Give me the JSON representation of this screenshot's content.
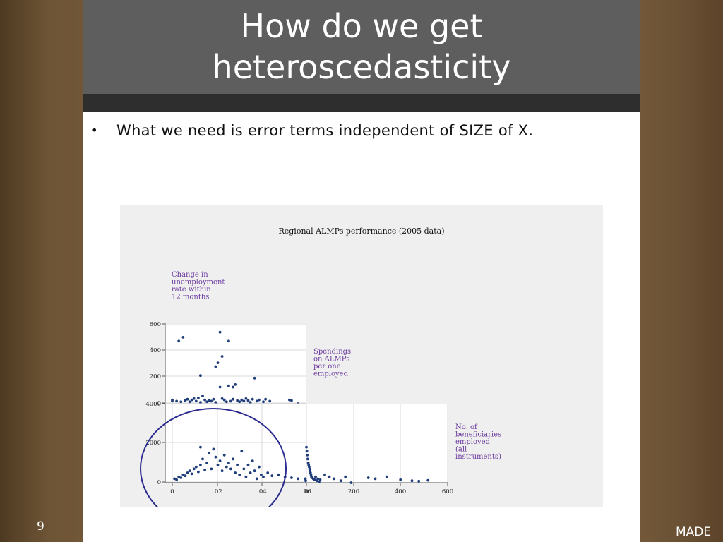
{
  "slide": {
    "title": "How do we get\nheteroscedasticity",
    "bullet": "What we need is error terms independent of SIZE of X.",
    "bullet_marker": "•",
    "page_number": "9",
    "footer_brand": "MADE"
  },
  "chart_data": {
    "type": "scatter",
    "title": "Regional ALMPs performance (2005 data)",
    "variables": [
      "Change in\nunemployment\nrate within\n12 months",
      "Spendings\non ALMPs\nper one\nemployed",
      "No. of\nbeneficiaries\nemployed\n(all\ninstruments)"
    ],
    "panels": [
      {
        "name": "top",
        "x_ticks": [],
        "y_ticks": [
          "600",
          "400",
          "200",
          "0"
        ],
        "xlim": [
          -0.003,
          0.06
        ],
        "ylim": [
          -20,
          610
        ],
        "points": [
          [
            0.0,
            0.0
          ],
          [
            0.003,
            470
          ],
          [
            0.005,
            500
          ],
          [
            0.0,
            10
          ],
          [
            0.002,
            0
          ],
          [
            0.004,
            -5
          ],
          [
            0.006,
            5
          ],
          [
            0.007,
            15
          ],
          [
            0.008,
            -5
          ],
          [
            0.009,
            10
          ],
          [
            0.01,
            20
          ],
          [
            0.011,
            0
          ],
          [
            0.012,
            25
          ],
          [
            0.013,
            -10
          ],
          [
            0.014,
            40
          ],
          [
            0.013,
            200
          ],
          [
            0.015,
            10
          ],
          [
            0.016,
            -5
          ],
          [
            0.017,
            5
          ],
          [
            0.018,
            0
          ],
          [
            0.019,
            15
          ],
          [
            0.02,
            -10
          ],
          [
            0.02,
            270
          ],
          [
            0.021,
            300
          ],
          [
            0.022,
            540
          ],
          [
            0.022,
            110
          ],
          [
            0.023,
            20
          ],
          [
            0.023,
            350
          ],
          [
            0.024,
            10
          ],
          [
            0.025,
            -5
          ],
          [
            0.026,
            470
          ],
          [
            0.026,
            120
          ],
          [
            0.027,
            0
          ],
          [
            0.028,
            15
          ],
          [
            0.028,
            110
          ],
          [
            0.029,
            130
          ],
          [
            0.03,
            5
          ],
          [
            0.031,
            -5
          ],
          [
            0.032,
            10
          ],
          [
            0.033,
            0
          ],
          [
            0.034,
            20
          ],
          [
            0.035,
            5
          ],
          [
            0.036,
            -10
          ],
          [
            0.037,
            15
          ],
          [
            0.038,
            180
          ],
          [
            0.039,
            0
          ],
          [
            0.04,
            10
          ],
          [
            0.042,
            -5
          ],
          [
            0.043,
            15
          ],
          [
            0.045,
            0
          ],
          [
            0.054,
            10
          ],
          [
            0.055,
            5
          ],
          [
            0.058,
            -20
          ]
        ]
      },
      {
        "name": "bottom-left",
        "x_ticks": [
          "0",
          ".02",
          ".04",
          ".06"
        ],
        "y_ticks": [
          "4000",
          "2000",
          "0"
        ],
        "xlim": [
          -0.003,
          0.06
        ],
        "ylim": [
          0,
          4000
        ],
        "points": [
          [
            0.001,
            200
          ],
          [
            0.002,
            150
          ],
          [
            0.003,
            300
          ],
          [
            0.004,
            250
          ],
          [
            0.005,
            400
          ],
          [
            0.006,
            350
          ],
          [
            0.007,
            500
          ],
          [
            0.008,
            600
          ],
          [
            0.009,
            450
          ],
          [
            0.01,
            700
          ],
          [
            0.011,
            800
          ],
          [
            0.012,
            550
          ],
          [
            0.013,
            1800
          ],
          [
            0.013,
            900
          ],
          [
            0.014,
            1200
          ],
          [
            0.015,
            650
          ],
          [
            0.016,
            1000
          ],
          [
            0.017,
            1500
          ],
          [
            0.018,
            700
          ],
          [
            0.019,
            1700
          ],
          [
            0.02,
            1300
          ],
          [
            0.021,
            900
          ],
          [
            0.022,
            1100
          ],
          [
            0.023,
            600
          ],
          [
            0.024,
            1400
          ],
          [
            0.025,
            800
          ],
          [
            0.026,
            1000
          ],
          [
            0.027,
            700
          ],
          [
            0.028,
            1200
          ],
          [
            0.029,
            500
          ],
          [
            0.03,
            900
          ],
          [
            0.031,
            400
          ],
          [
            0.032,
            1600
          ],
          [
            0.033,
            700
          ],
          [
            0.034,
            300
          ],
          [
            0.035,
            900
          ],
          [
            0.036,
            500
          ],
          [
            0.037,
            1100
          ],
          [
            0.038,
            600
          ],
          [
            0.039,
            200
          ],
          [
            0.04,
            800
          ],
          [
            0.041,
            400
          ],
          [
            0.042,
            300
          ],
          [
            0.044,
            500
          ],
          [
            0.046,
            350
          ],
          [
            0.049,
            400
          ],
          [
            0.052,
            300
          ],
          [
            0.055,
            250
          ],
          [
            0.058,
            200
          ]
        ]
      },
      {
        "name": "bottom-right",
        "x_ticks": [
          "0",
          "200",
          "400",
          "600"
        ],
        "y_ticks": [],
        "xlim": [
          -10,
          600
        ],
        "ylim": [
          0,
          4000
        ],
        "points": [
          [
            0,
            1800
          ],
          [
            2,
            1600
          ],
          [
            4,
            1400
          ],
          [
            6,
            1200
          ],
          [
            8,
            1000
          ],
          [
            10,
            900
          ],
          [
            12,
            800
          ],
          [
            14,
            700
          ],
          [
            16,
            600
          ],
          [
            18,
            500
          ],
          [
            20,
            400
          ],
          [
            22,
            300
          ],
          [
            25,
            250
          ],
          [
            30,
            200
          ],
          [
            35,
            150
          ],
          [
            40,
            300
          ],
          [
            45,
            100
          ],
          [
            50,
            200
          ],
          [
            55,
            50
          ],
          [
            60,
            150
          ],
          [
            80,
            400
          ],
          [
            100,
            300
          ],
          [
            120,
            200
          ],
          [
            150,
            100
          ],
          [
            170,
            300
          ],
          [
            195,
            0
          ],
          [
            270,
            250
          ],
          [
            300,
            200
          ],
          [
            350,
            300
          ],
          [
            410,
            150
          ],
          [
            460,
            100
          ],
          [
            490,
            80
          ],
          [
            530,
            120
          ],
          [
            -5,
            200
          ],
          [
            -3,
            100
          ]
        ]
      }
    ],
    "highlight": "circle",
    "colors": {
      "points": "#1f3d7a",
      "grid": "#d9d9d9",
      "background": "#efefef",
      "label": "#6a3a9e",
      "circle": "#2b2b8f"
    }
  }
}
